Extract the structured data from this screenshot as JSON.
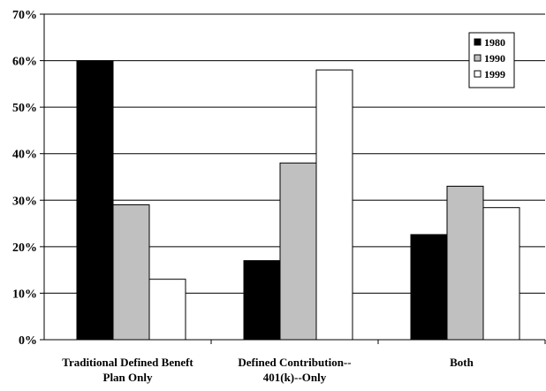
{
  "chart_data": {
    "type": "bar",
    "categories": [
      [
        "Traditional Defined Beneft",
        "Plan Only"
      ],
      [
        "Defined Contribution--",
        "401(k)--Only"
      ],
      [
        "Both"
      ]
    ],
    "series": [
      {
        "name": "1980",
        "color": "#000000",
        "values": [
          60,
          17,
          22.6
        ]
      },
      {
        "name": "1990",
        "color": "#c0c0c0",
        "values": [
          29,
          38,
          33
        ]
      },
      {
        "name": "1999",
        "color": "#ffffff",
        "values": [
          13,
          58,
          28.4
        ]
      }
    ],
    "y_ticks": [
      "0%",
      "10%",
      "20%",
      "30%",
      "40%",
      "50%",
      "60%",
      "70%"
    ],
    "ylim": [
      0,
      70
    ],
    "y_step": 10,
    "grid": true,
    "legend": "top-right",
    "title": "",
    "xlabel": "",
    "ylabel": ""
  }
}
